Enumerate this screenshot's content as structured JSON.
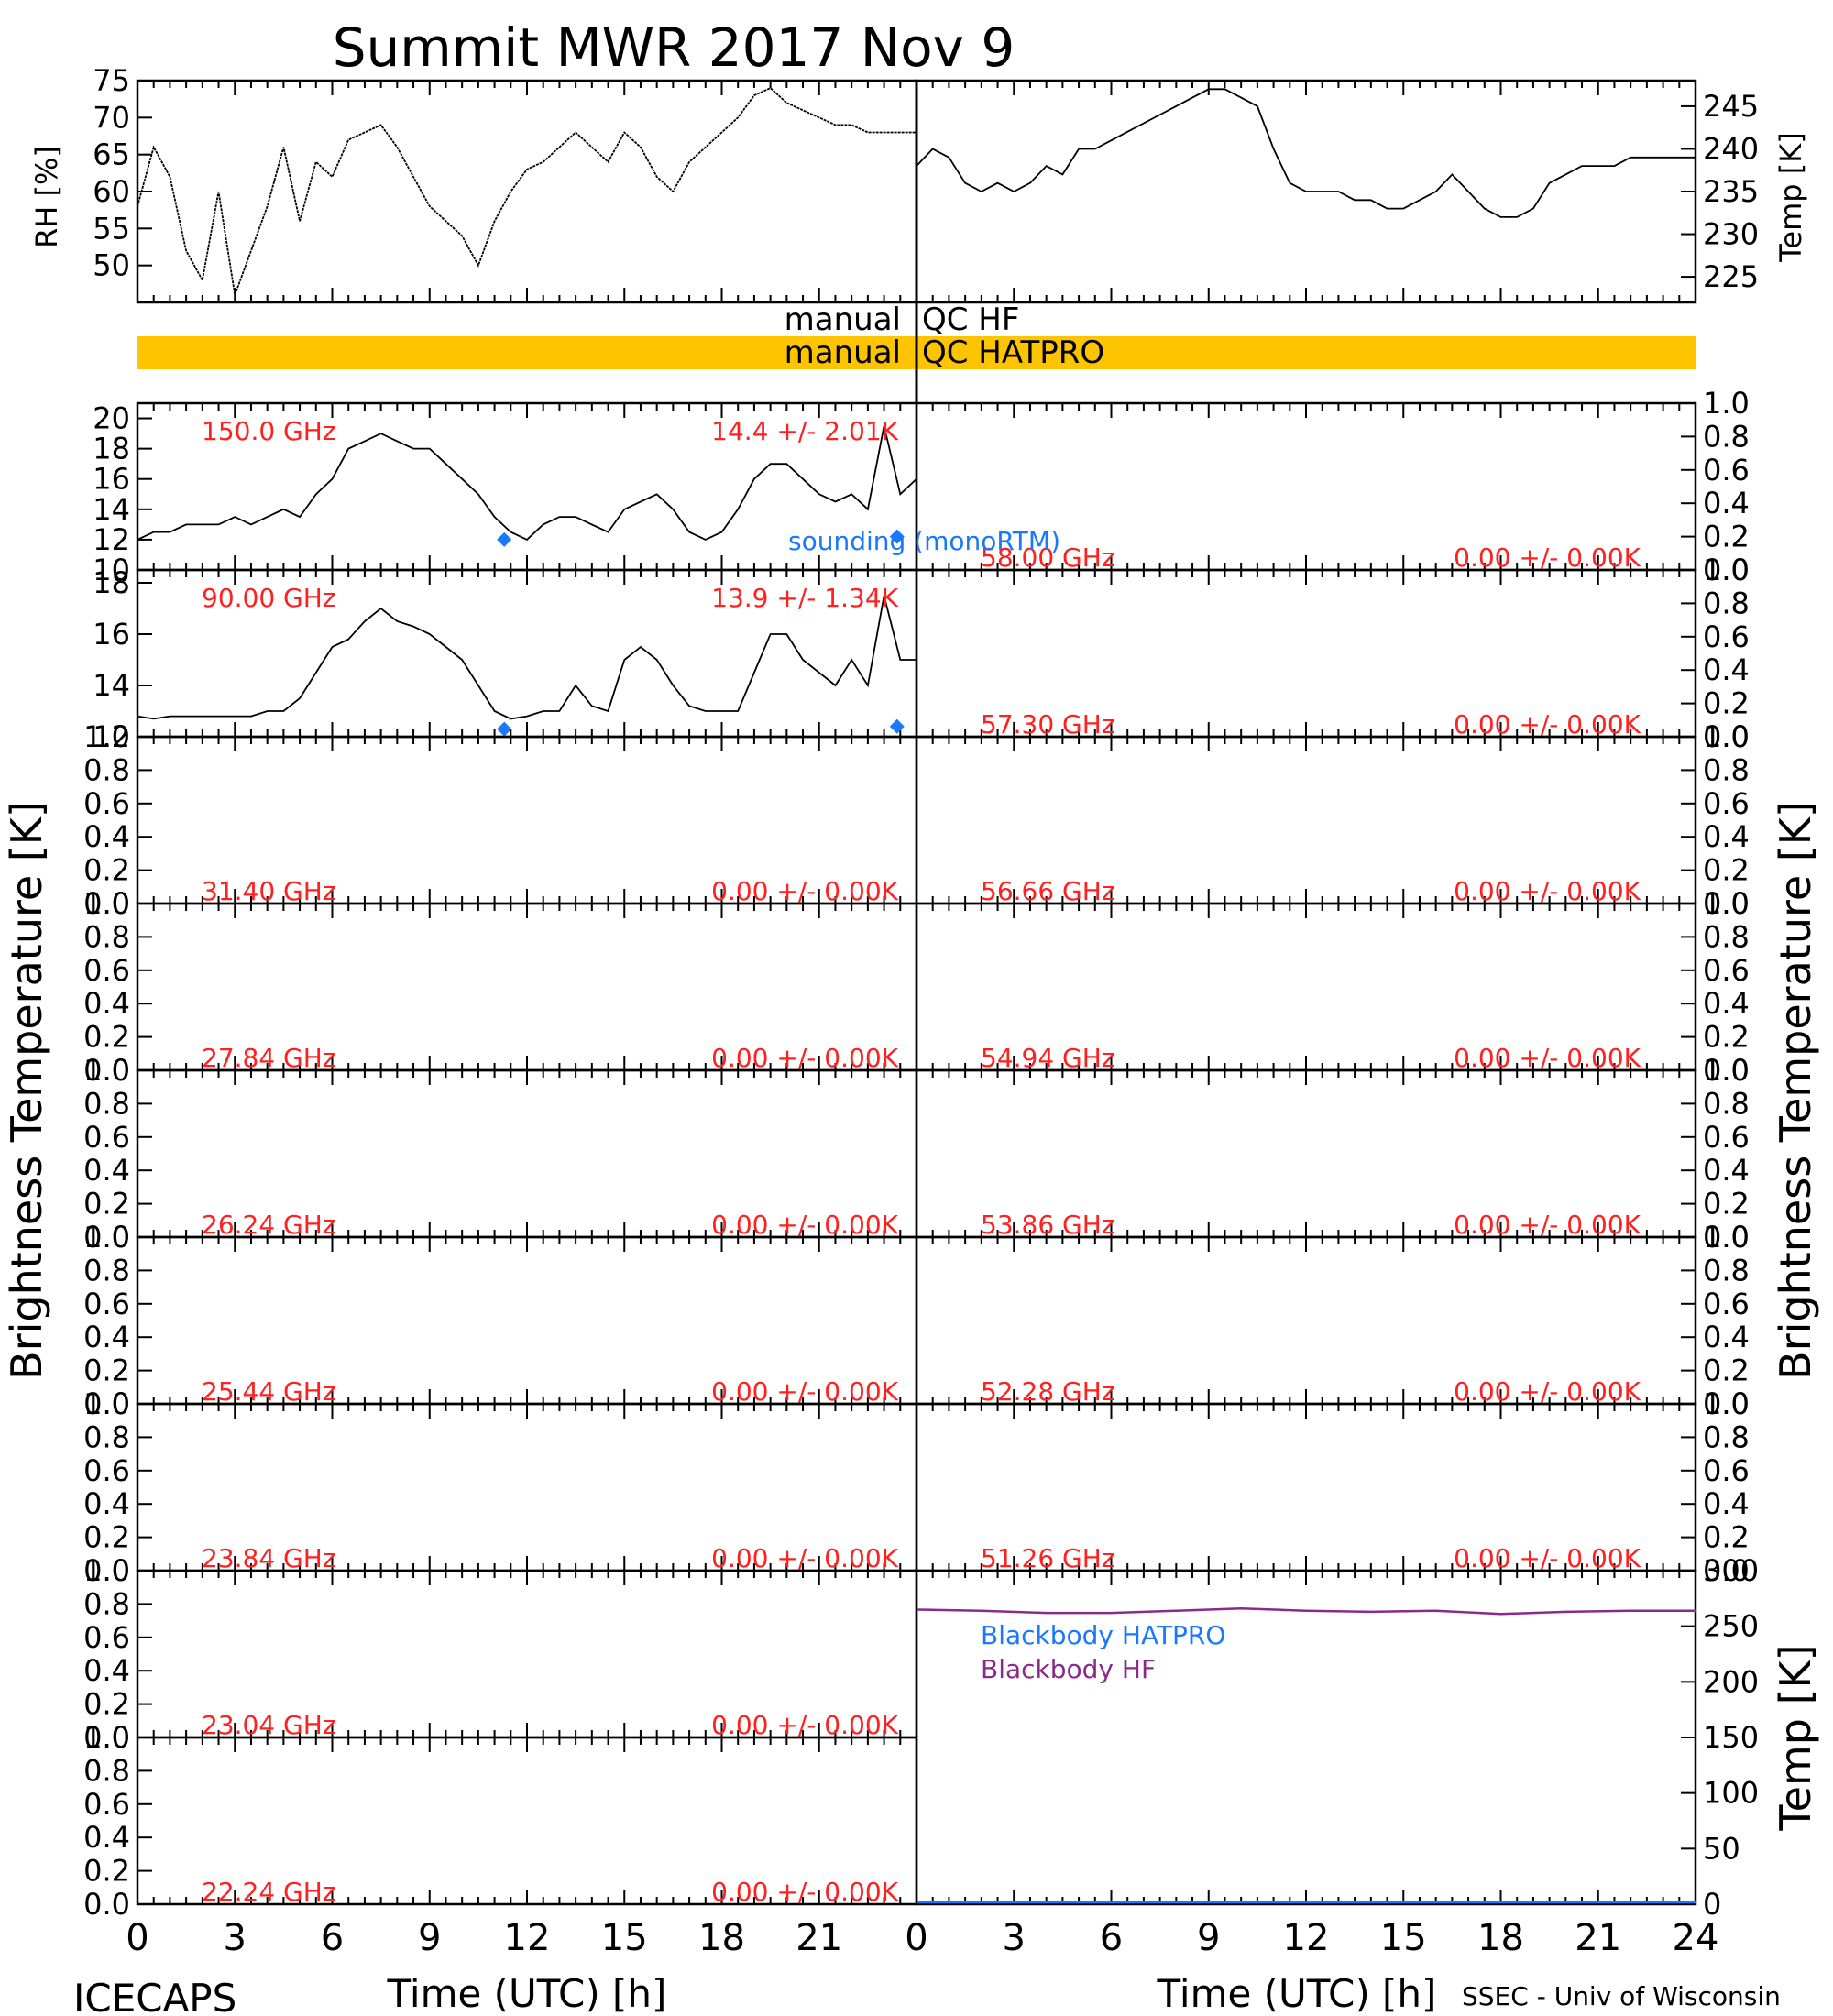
{
  "title": "Summit MWR 2017 Nov  9",
  "footer_left": "ICECAPS",
  "footer_right": "SSEC - Univ of Wisconsin",
  "xlabel": "Time (UTC) [h]",
  "x_ticks": [
    "0",
    "3",
    "6",
    "9",
    "12",
    "15",
    "18",
    "21",
    "24"
  ],
  "ylabel_bt": "Brightness Temperature [K]",
  "colors": {
    "red": "#ff2020",
    "blue": "#1a78ff",
    "purple": "#8b2a8b",
    "qc_bar": "#ffc400",
    "trace": "#000000"
  },
  "qc": {
    "hf_left": "manual",
    "hf_right": "QC HF",
    "hat_left": "manual",
    "hat_right": "QC HATPRO"
  },
  "sounding_label": "sounding (monoRTM)",
  "chart_data": [
    {
      "type": "line",
      "id": "rh",
      "ylabel": "RH [%]",
      "xlim": [
        0,
        24
      ],
      "ylim": [
        45,
        75
      ],
      "yticks": [
        "50",
        "55",
        "60",
        "65",
        "70",
        "75"
      ],
      "x": [
        0,
        0.5,
        1,
        1.5,
        2,
        2.5,
        3,
        3.5,
        4,
        4.5,
        5,
        5.5,
        6,
        6.5,
        7,
        7.5,
        8,
        8.5,
        9,
        9.5,
        10,
        10.5,
        11,
        11.5,
        12,
        12.5,
        13,
        13.5,
        14,
        14.5,
        15,
        15.5,
        16,
        16.5,
        17,
        17.5,
        18,
        18.5,
        19,
        19.5,
        20,
        20.5,
        21,
        21.5,
        22,
        22.5,
        23,
        23.5,
        24
      ],
      "y": [
        58,
        66,
        62,
        52,
        48,
        60,
        46,
        52,
        58,
        66,
        56,
        64,
        62,
        67,
        68,
        69,
        66,
        62,
        58,
        56,
        54,
        50,
        56,
        60,
        63,
        64,
        66,
        68,
        66,
        64,
        68,
        66,
        62,
        60,
        64,
        66,
        68,
        70,
        73,
        74,
        72,
        71,
        70,
        69,
        69,
        68,
        68,
        68,
        68
      ]
    },
    {
      "type": "line",
      "id": "temp",
      "ylabel": "Temp [K]",
      "xlim": [
        0,
        24
      ],
      "ylim": [
        222,
        248
      ],
      "yticks": [
        "225",
        "230",
        "235",
        "240",
        "245"
      ],
      "x": [
        0,
        0.5,
        1,
        1.5,
        2,
        2.5,
        3,
        3.5,
        4,
        4.5,
        5,
        5.5,
        6,
        6.5,
        7,
        7.5,
        8,
        8.5,
        9,
        9.5,
        10,
        10.5,
        11,
        11.5,
        12,
        12.5,
        13,
        13.5,
        14,
        14.5,
        15,
        15.5,
        16,
        16.5,
        17,
        17.5,
        18,
        18.5,
        19,
        19.5,
        20,
        20.5,
        21,
        21.5,
        22,
        22.5,
        23,
        23.5,
        24
      ],
      "y": [
        238,
        240,
        239,
        236,
        235,
        236,
        235,
        236,
        238,
        237,
        240,
        240,
        241,
        242,
        243,
        244,
        245,
        246,
        247,
        247,
        246,
        245,
        240,
        236,
        235,
        235,
        235,
        234,
        234,
        233,
        233,
        234,
        235,
        237,
        235,
        233,
        232,
        232,
        233,
        236,
        237,
        238,
        238,
        238,
        239,
        239,
        239,
        239,
        239
      ]
    },
    {
      "type": "scatter",
      "id": "bt150",
      "label": "150.0 GHz",
      "stats": "14.4 +/-  2.01K",
      "xlim": [
        0,
        24
      ],
      "ylim": [
        10,
        21
      ],
      "yticks": [
        "10",
        "12",
        "14",
        "16",
        "18",
        "20"
      ],
      "x": [
        0,
        0.5,
        1,
        1.5,
        2,
        2.5,
        3,
        3.5,
        4,
        4.5,
        5,
        5.5,
        6,
        6.5,
        7,
        7.5,
        8,
        8.5,
        9,
        9.5,
        10,
        10.5,
        11,
        11.5,
        12,
        12.5,
        13,
        13.5,
        14,
        14.5,
        15,
        15.5,
        16,
        16.5,
        17,
        17.5,
        18,
        18.5,
        19,
        19.5,
        20,
        20.5,
        21,
        21.5,
        22,
        22.5,
        23,
        23.5,
        24
      ],
      "y": [
        12,
        12.5,
        12.5,
        13,
        13,
        13,
        13.5,
        13,
        13.5,
        14,
        13.5,
        15,
        16,
        18,
        18.5,
        19,
        18.5,
        18,
        18,
        17,
        16,
        15,
        13.5,
        12.5,
        12,
        13,
        13.5,
        13.5,
        13,
        12.5,
        14,
        14.5,
        15,
        14,
        12.5,
        12,
        12.5,
        14,
        16,
        17,
        17,
        16,
        15,
        14.5,
        15,
        14,
        19.5,
        15,
        16
      ],
      "sounding_x": [
        11.3,
        23.4
      ],
      "sounding_y": [
        12,
        12.2
      ]
    },
    {
      "type": "scatter",
      "id": "bt90",
      "label": "90.00 GHz",
      "stats": "13.9 +/-  1.34K",
      "xlim": [
        0,
        24
      ],
      "ylim": [
        12,
        18.5
      ],
      "yticks": [
        "12",
        "14",
        "16",
        "18"
      ],
      "x": [
        0,
        0.5,
        1,
        1.5,
        2,
        2.5,
        3,
        3.5,
        4,
        4.5,
        5,
        5.5,
        6,
        6.5,
        7,
        7.5,
        8,
        8.5,
        9,
        9.5,
        10,
        10.5,
        11,
        11.5,
        12,
        12.5,
        13,
        13.5,
        14,
        14.5,
        15,
        15.5,
        16,
        16.5,
        17,
        17.5,
        18,
        18.5,
        19,
        19.5,
        20,
        20.5,
        21,
        21.5,
        22,
        22.5,
        23,
        23.5,
        24
      ],
      "y": [
        12.8,
        12.7,
        12.8,
        12.8,
        12.8,
        12.8,
        12.8,
        12.8,
        13,
        13,
        13.5,
        14.5,
        15.5,
        15.8,
        16.5,
        17,
        16.5,
        16.3,
        16,
        15.5,
        15,
        14,
        13,
        12.7,
        12.8,
        13,
        13,
        14,
        13.2,
        13,
        15,
        15.5,
        15,
        14,
        13.2,
        13,
        13,
        13,
        14.5,
        16,
        16,
        15,
        14.5,
        14,
        15,
        14,
        17.5,
        15,
        15
      ],
      "sounding_x": [
        11.3,
        23.4
      ],
      "sounding_y": [
        12.3,
        12.4
      ]
    },
    {
      "type": "scatter",
      "id": "bt58",
      "label": "58.00 GHz",
      "stats": "0.00 +/-  0.00K",
      "ylim": [
        0,
        1
      ],
      "yticks": [
        "0.0",
        "0.2",
        "0.4",
        "0.6",
        "0.8",
        "1.0"
      ]
    },
    {
      "type": "scatter",
      "id": "bt573",
      "label": "57.30 GHz",
      "stats": "0.00 +/-  0.00K",
      "ylim": [
        0,
        1
      ],
      "yticks": [
        "0.0",
        "0.2",
        "0.4",
        "0.6",
        "0.8",
        "1.0"
      ]
    },
    {
      "type": "scatter",
      "id": "bt314",
      "label": "31.40 GHz",
      "stats": "0.00 +/-  0.00K",
      "ylim": [
        0,
        1
      ],
      "yticks": [
        "0.0",
        "0.2",
        "0.4",
        "0.6",
        "0.8",
        "1.0"
      ]
    },
    {
      "type": "scatter",
      "id": "bt5666",
      "label": "56.66 GHz",
      "stats": "0.00 +/-  0.00K",
      "ylim": [
        0,
        1
      ],
      "yticks": [
        "0.0",
        "0.2",
        "0.4",
        "0.6",
        "0.8",
        "1.0"
      ]
    },
    {
      "type": "scatter",
      "id": "bt2784",
      "label": "27.84 GHz",
      "stats": "0.00 +/-  0.00K",
      "ylim": [
        0,
        1
      ],
      "yticks": [
        "0.0",
        "0.2",
        "0.4",
        "0.6",
        "0.8",
        "1.0"
      ]
    },
    {
      "type": "scatter",
      "id": "bt5494",
      "label": "54.94 GHz",
      "stats": "0.00 +/-  0.00K",
      "ylim": [
        0,
        1
      ],
      "yticks": [
        "0.0",
        "0.2",
        "0.4",
        "0.6",
        "0.8",
        "1.0"
      ]
    },
    {
      "type": "scatter",
      "id": "bt2624",
      "label": "26.24 GHz",
      "stats": "0.00 +/-  0.00K",
      "ylim": [
        0,
        1
      ],
      "yticks": [
        "0.0",
        "0.2",
        "0.4",
        "0.6",
        "0.8",
        "1.0"
      ]
    },
    {
      "type": "scatter",
      "id": "bt5386",
      "label": "53.86 GHz",
      "stats": "0.00 +/-  0.00K",
      "ylim": [
        0,
        1
      ],
      "yticks": [
        "0.0",
        "0.2",
        "0.4",
        "0.6",
        "0.8",
        "1.0"
      ]
    },
    {
      "type": "scatter",
      "id": "bt2544",
      "label": "25.44 GHz",
      "stats": "0.00 +/-  0.00K",
      "ylim": [
        0,
        1
      ],
      "yticks": [
        "0.0",
        "0.2",
        "0.4",
        "0.6",
        "0.8",
        "1.0"
      ]
    },
    {
      "type": "scatter",
      "id": "bt5228",
      "label": "52.28 GHz",
      "stats": "0.00 +/-  0.00K",
      "ylim": [
        0,
        1
      ],
      "yticks": [
        "0.0",
        "0.2",
        "0.4",
        "0.6",
        "0.8",
        "1.0"
      ]
    },
    {
      "type": "scatter",
      "id": "bt2384",
      "label": "23.84 GHz",
      "stats": "0.00 +/-  0.00K",
      "ylim": [
        0,
        1
      ],
      "yticks": [
        "0.0",
        "0.2",
        "0.4",
        "0.6",
        "0.8",
        "1.0"
      ]
    },
    {
      "type": "scatter",
      "id": "bt5126",
      "label": "51.26 GHz",
      "stats": "0.00 +/-  0.00K",
      "ylim": [
        0,
        1
      ],
      "yticks": [
        "0.0",
        "0.2",
        "0.4",
        "0.6",
        "0.8",
        "1.0"
      ]
    },
    {
      "type": "scatter",
      "id": "bt2304",
      "label": "23.04 GHz",
      "stats": "0.00 +/-  0.00K",
      "ylim": [
        0,
        1
      ],
      "yticks": [
        "0.0",
        "0.2",
        "0.4",
        "0.6",
        "0.8",
        "1.0"
      ]
    },
    {
      "type": "scatter",
      "id": "bt2224",
      "label": "22.24 GHz",
      "stats": "0.00 +/-  0.00K",
      "ylim": [
        0,
        1
      ],
      "yticks": [
        "0.0",
        "0.2",
        "0.4",
        "0.6",
        "0.8",
        "1.0"
      ]
    },
    {
      "type": "line",
      "id": "blackbody",
      "ylabel": "Temp [K]",
      "xlim": [
        0,
        24
      ],
      "ylim": [
        0,
        300
      ],
      "yticks": [
        "0",
        "50",
        "100",
        "150",
        "200",
        "250",
        "300"
      ],
      "legend": [
        "Blackbody HATPRO",
        "Blackbody HF"
      ],
      "series": [
        {
          "name": "Blackbody HF",
          "x": [
            0,
            2,
            4,
            6,
            8,
            10,
            12,
            14,
            16,
            18,
            20,
            22,
            24
          ],
          "y": [
            265,
            264,
            262,
            262,
            264,
            266,
            264,
            263,
            264,
            261,
            263,
            264,
            264
          ]
        },
        {
          "name": "Blackbody HATPRO",
          "x": [
            0,
            24
          ],
          "y": [
            0,
            0
          ]
        }
      ]
    }
  ]
}
